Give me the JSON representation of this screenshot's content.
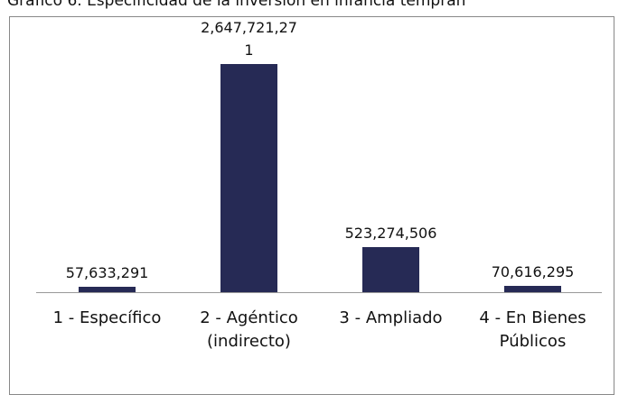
{
  "chart_data": {
    "type": "bar",
    "title": "Gráfico 6. Especificidad de la inversión en infancia tempran",
    "categories": [
      "1 - Específico",
      "2 - Agéntico (indirecto)",
      "3 - Ampliado",
      "4 - En Bienes Públicos"
    ],
    "values": [
      57633291,
      2647721271,
      523274506,
      70616295
    ],
    "value_labels": [
      "57,633,291",
      "2,647,721,271",
      "523,274,506",
      "70,616,295"
    ],
    "color": "#262a55"
  }
}
